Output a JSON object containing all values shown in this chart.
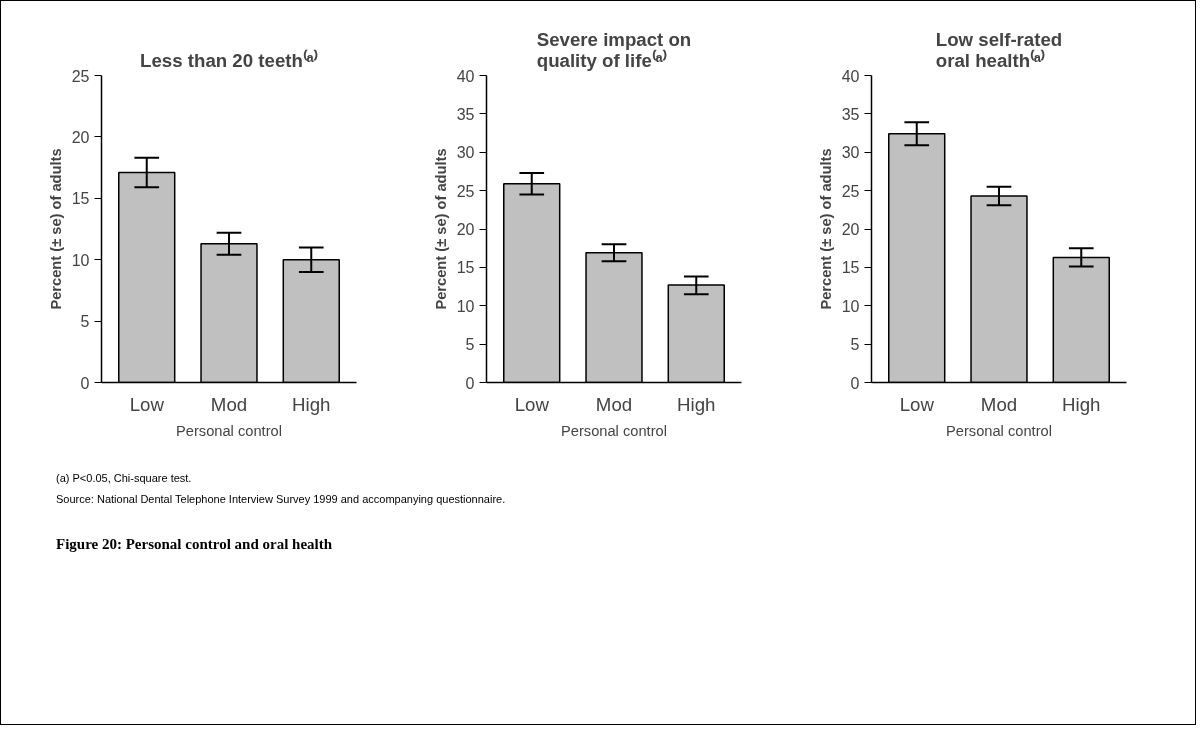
{
  "chart_data": [
    {
      "type": "bar",
      "title": "Less than 20 teeth⁽ᵃ⁾",
      "xlabel": "Personal control",
      "ylabel": "Percent (± se) of adults",
      "categories": [
        "Low",
        "Mod",
        "High"
      ],
      "values": [
        17.1,
        11.3,
        10.0
      ],
      "color": "#c0c0c0",
      "errors": [
        [
          15.9,
          18.3
        ],
        [
          10.4,
          12.2
        ],
        [
          9.0,
          11.0
        ]
      ],
      "ylim": [
        0,
        25
      ],
      "yticks": [
        0,
        5,
        10,
        15,
        20,
        25
      ],
      "grid": false,
      "annotations": [
        "(a) P<0.05, Chi-square test.",
        "Source: National Dental Telephone Interview Survey 1999 and accompanying questionnaire.",
        "Figure 20: Personal control and oral health"
      ]
    },
    {
      "type": "bar",
      "title": "Severe impact on\nquality of life⁽ᵃ⁾",
      "xlabel": "Personal control",
      "ylabel": "Percent (± se) of adults",
      "categories": [
        "Low",
        "Mod",
        "High"
      ],
      "values": [
        25.9,
        16.9,
        12.7
      ],
      "color": "#c0c0c0",
      "errors": [
        [
          24.5,
          27.3
        ],
        [
          15.8,
          18.0
        ],
        [
          11.5,
          13.8
        ]
      ],
      "ylim": [
        0,
        40
      ],
      "yticks": [
        0,
        5,
        10,
        15,
        20,
        25,
        30,
        35,
        40
      ],
      "grid": false
    },
    {
      "type": "bar",
      "title": "Low self-rated\noral health⁽ᵃ⁾",
      "xlabel": "Personal control",
      "ylabel": "Percent (± se) of adults",
      "categories": [
        "Low",
        "Mod",
        "High"
      ],
      "values": [
        32.4,
        24.3,
        16.3
      ],
      "color": "#c0c0c0",
      "errors": [
        [
          30.9,
          33.9
        ],
        [
          23.1,
          25.5
        ],
        [
          15.1,
          17.5
        ]
      ],
      "ylim": [
        0,
        40
      ],
      "yticks": [
        0,
        5,
        10,
        15,
        20,
        25,
        30,
        35,
        40
      ],
      "grid": false
    }
  ]
}
